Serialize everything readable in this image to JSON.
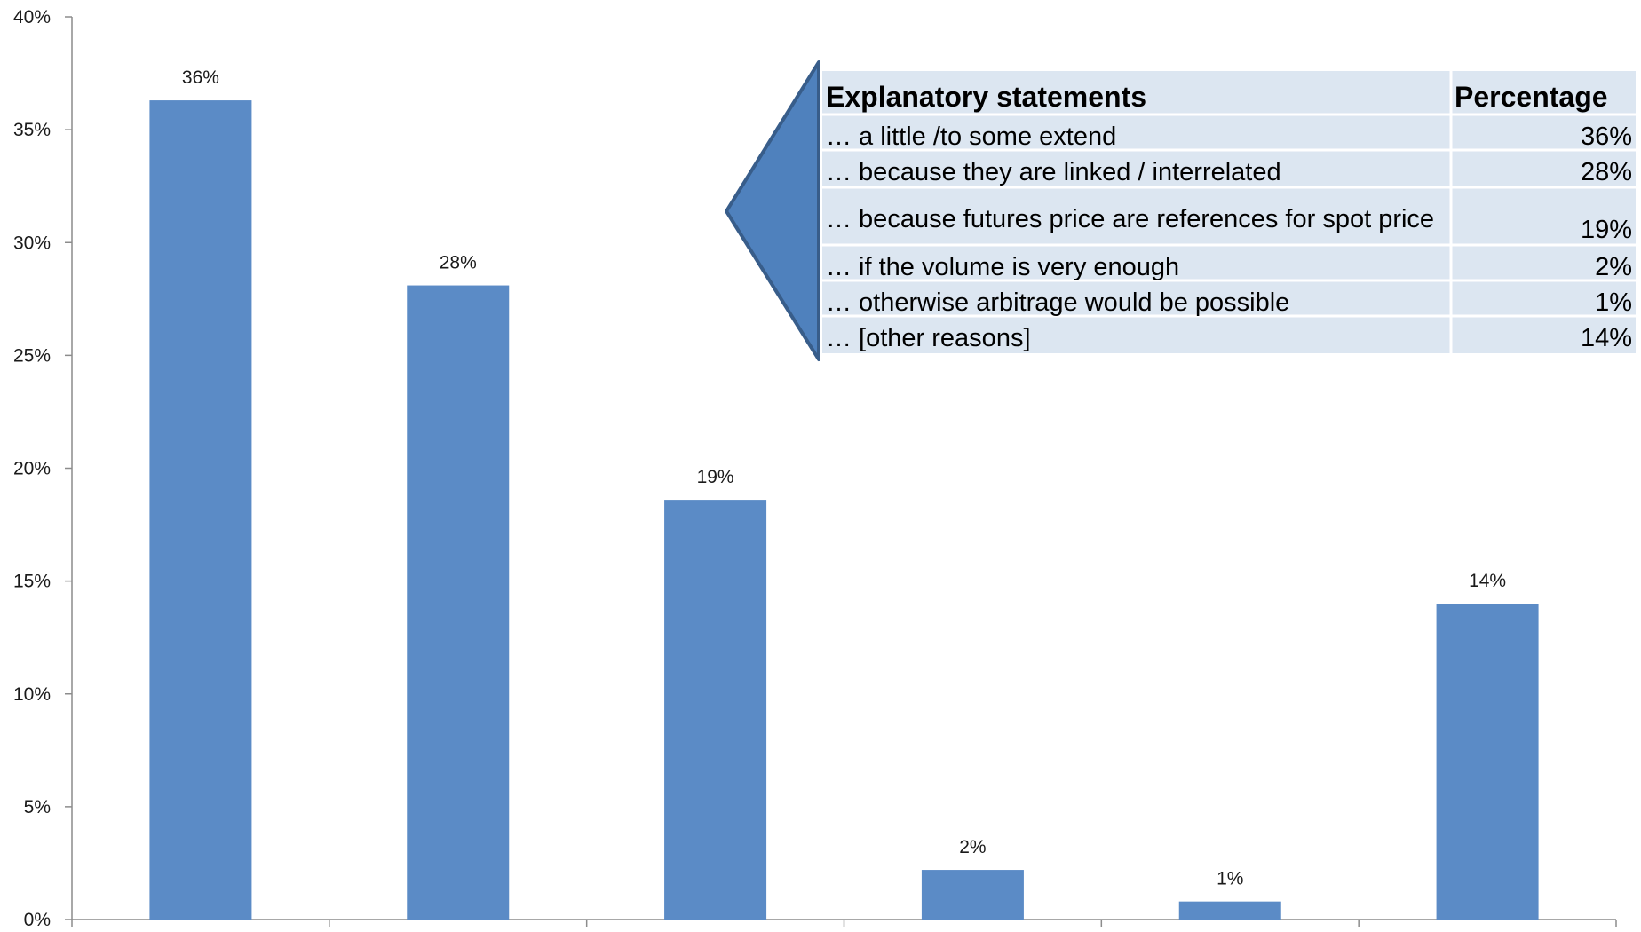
{
  "chart_data": {
    "type": "bar",
    "categories": [
      "",
      "",
      "",
      "",
      "",
      ""
    ],
    "values": [
      36.3,
      28.1,
      18.6,
      2.2,
      0.8,
      14.0
    ],
    "data_labels": [
      "36%",
      "28%",
      "19%",
      "2%",
      "1%",
      "14%"
    ],
    "title": "",
    "xlabel": "",
    "ylabel": "",
    "ylim": [
      0,
      40
    ],
    "y_ticks": [
      0,
      5,
      10,
      15,
      20,
      25,
      30,
      35,
      40
    ],
    "y_tick_labels": [
      "0%",
      "5%",
      "10%",
      "15%",
      "20%",
      "25%",
      "30%",
      "35%",
      "40%"
    ],
    "grid": false,
    "bar_color": "#5B8BC6",
    "axis_color": "#8C8C8C"
  },
  "legend_table": {
    "headers": [
      "Explanatory statements",
      "Percentage"
    ],
    "rows": [
      {
        "statement": "… a  little /to some extend",
        "percentage": "36%"
      },
      {
        "statement": "… because they are linked / interrelated",
        "percentage": "28%"
      },
      {
        "statement": "… because futures price are references for spot price",
        "percentage": "19%"
      },
      {
        "statement": "… if the volume is very enough",
        "percentage": "2%"
      },
      {
        "statement": "… otherwise arbitrage would be possible",
        "percentage": "1%"
      },
      {
        "statement": "… [other reasons]",
        "percentage": "14%"
      }
    ],
    "fill_color": "#DCE6F1",
    "pointer_color": "#4F81BD",
    "pointer_border": "#385D8A"
  }
}
